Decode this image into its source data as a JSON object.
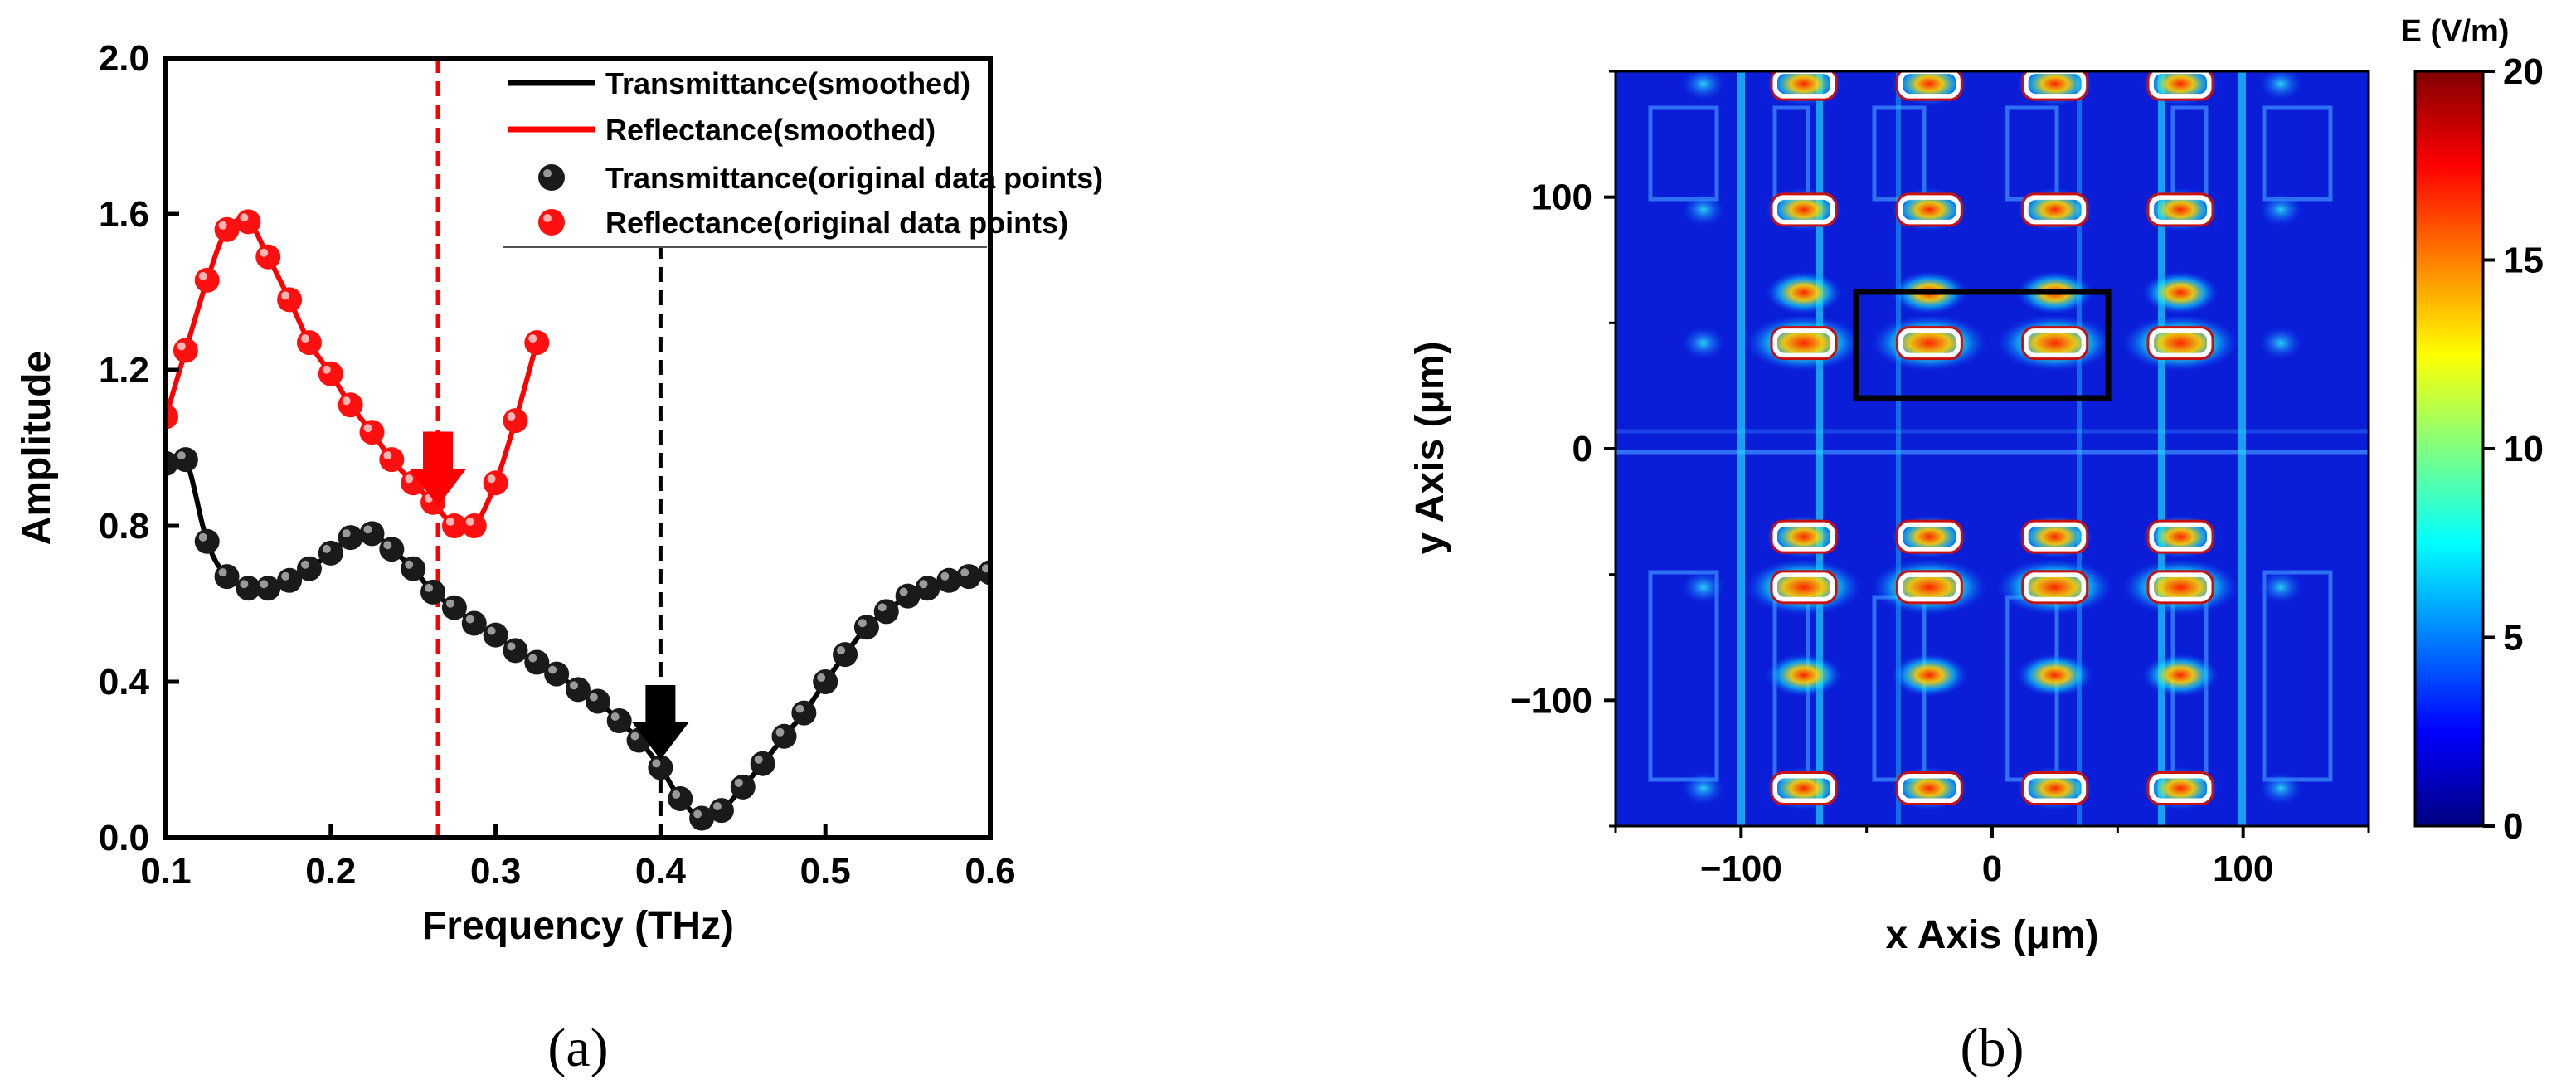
{
  "chart_data": [
    {
      "type": "line",
      "panel": "(a)",
      "xlabel": "Frequency (THz)",
      "ylabel": "Amplitude",
      "xlim": [
        0.1,
        0.6
      ],
      "ylim": [
        0.0,
        2.0
      ],
      "xticks": [
        "0.1",
        "0.2",
        "0.3",
        "0.4",
        "0.5",
        "0.6"
      ],
      "yticks": [
        "0.0",
        "0.4",
        "0.8",
        "1.2",
        "1.6",
        "2.0"
      ],
      "legend": [
        "Transmittance(smoothed)",
        "Reflectance(smoothed)",
        "Transmittance(original data points)",
        "Reflectance(original data points)"
      ],
      "series": [
        {
          "name": "Transmittance",
          "color": "#000000",
          "x": [
            0.1,
            0.112,
            0.125,
            0.137,
            0.15,
            0.162,
            0.175,
            0.187,
            0.2,
            0.212,
            0.225,
            0.237,
            0.25,
            0.262,
            0.275,
            0.287,
            0.3,
            0.312,
            0.325,
            0.337,
            0.35,
            0.362,
            0.375,
            0.387,
            0.4,
            0.412,
            0.425,
            0.437,
            0.45,
            0.462,
            0.475,
            0.487,
            0.5,
            0.512,
            0.525,
            0.537,
            0.55,
            0.562,
            0.575,
            0.587,
            0.6
          ],
          "values": [
            0.96,
            0.97,
            0.76,
            0.67,
            0.64,
            0.64,
            0.66,
            0.69,
            0.73,
            0.77,
            0.78,
            0.74,
            0.69,
            0.63,
            0.59,
            0.55,
            0.52,
            0.48,
            0.45,
            0.42,
            0.38,
            0.35,
            0.3,
            0.25,
            0.18,
            0.1,
            0.05,
            0.07,
            0.13,
            0.19,
            0.26,
            0.32,
            0.4,
            0.47,
            0.54,
            0.58,
            0.62,
            0.64,
            0.66,
            0.67,
            0.68
          ]
        },
        {
          "name": "Reflectance",
          "color": "#ff0000",
          "x": [
            0.1,
            0.112,
            0.125,
            0.137,
            0.15,
            0.162,
            0.175,
            0.187,
            0.2,
            0.212,
            0.225,
            0.237,
            0.25,
            0.262,
            0.275,
            0.287,
            0.3,
            0.312,
            0.325
          ],
          "values": [
            1.08,
            1.25,
            1.43,
            1.56,
            1.58,
            1.49,
            1.38,
            1.27,
            1.19,
            1.11,
            1.04,
            0.97,
            0.91,
            0.86,
            0.8,
            0.8,
            0.91,
            1.07,
            1.27
          ]
        }
      ],
      "annotations": [
        {
          "type": "vline",
          "x": 0.265,
          "color": "#ff0000",
          "style": "dashed"
        },
        {
          "type": "vline",
          "x": 0.4,
          "color": "#000000",
          "style": "dashed"
        },
        {
          "type": "arrow",
          "x": 0.265,
          "y": 0.85,
          "color": "#ff0000"
        },
        {
          "type": "arrow",
          "x": 0.4,
          "y": 0.2,
          "color": "#000000"
        }
      ]
    },
    {
      "type": "heatmap",
      "panel": "(b)",
      "xlabel": "x Axis (μm)",
      "ylabel": "y Axis (μm)",
      "xlim": [
        -150,
        150
      ],
      "ylim": [
        -150,
        150
      ],
      "xticks": [
        "−100",
        "0",
        "100"
      ],
      "yticks": [
        "100",
        "0",
        "−100"
      ],
      "colorbar": {
        "title": "E (V/m)",
        "range": [
          0,
          20
        ],
        "ticks": [
          "20",
          "15",
          "10",
          "5",
          "0"
        ]
      },
      "colormap": "jet"
    }
  ]
}
